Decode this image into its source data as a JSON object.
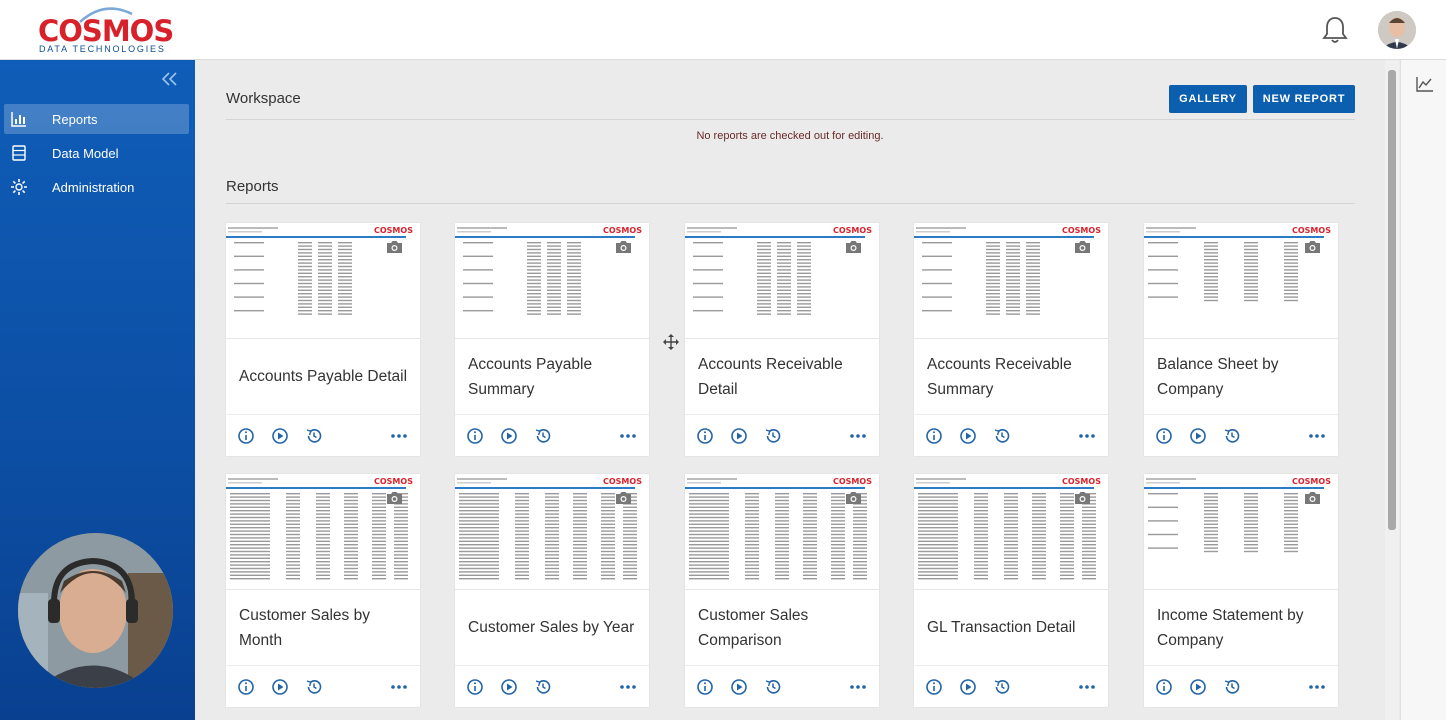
{
  "brand": {
    "name": "COSMOS",
    "tagline": "DATA TECHNOLOGIES",
    "color": "#d8222b"
  },
  "header": {
    "notifications_icon": "bell-icon",
    "avatar_icon": "user-avatar"
  },
  "sidebar": {
    "items": [
      {
        "label": "Reports",
        "icon": "bar-chart-icon",
        "active": true
      },
      {
        "label": "Data Model",
        "icon": "database-icon",
        "active": false
      },
      {
        "label": "Administration",
        "icon": "gear-icon",
        "active": false
      }
    ]
  },
  "workspace": {
    "title": "Workspace",
    "gallery_label": "GALLERY",
    "new_report_label": "NEW REPORT",
    "notice": "No reports are checked out for editing."
  },
  "reports": {
    "title": "Reports",
    "cards": [
      {
        "title": "Accounts Payable Detail"
      },
      {
        "title": "Accounts Payable Summary"
      },
      {
        "title": "Accounts Receivable Detail"
      },
      {
        "title": "Accounts Receivable Summary"
      },
      {
        "title": "Balance Sheet by Company"
      },
      {
        "title": "Customer Sales by Month"
      },
      {
        "title": "Customer Sales by Year"
      },
      {
        "title": "Customer Sales Comparison"
      },
      {
        "title": "GL Transaction Detail"
      },
      {
        "title": "Income Statement by Company"
      }
    ]
  },
  "colors": {
    "sidebar": "#0f5db8",
    "button": "#0c5fae",
    "background": "#ebebeb"
  }
}
